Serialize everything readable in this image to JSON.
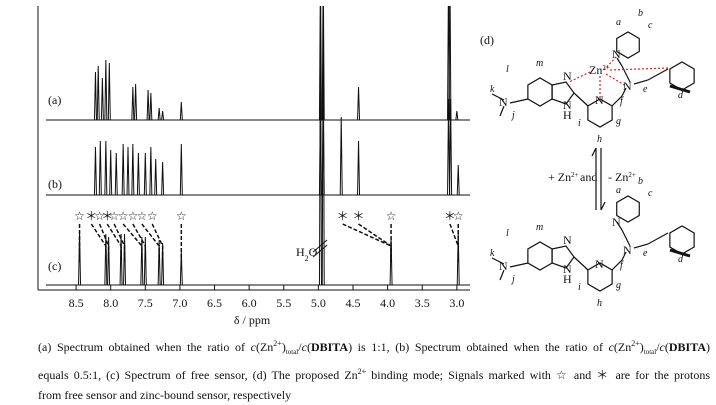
{
  "spectra": {
    "xlabel": "δ / ppm",
    "xlim": [
      9.05,
      2.81
    ],
    "xticks": [
      8.5,
      {
        "value": 8,
        "label": "8.0"
      },
      7.5,
      {
        "value": 7,
        "label": "7.0"
      },
      6.5,
      {
        "value": 6,
        "label": "6.0"
      },
      5.5,
      {
        "value": 5,
        "label": "5.0"
      },
      4.5,
      {
        "value": 4,
        "label": "4.0"
      },
      3.5,
      {
        "value": 3,
        "label": "3.0"
      }
    ],
    "traces": [
      {
        "label": "(a)",
        "peaks": [
          [
            8.22,
            0.8
          ],
          [
            8.18,
            0.9
          ],
          [
            8.12,
            0.7
          ],
          [
            8.07,
            1.0
          ],
          [
            8.02,
            0.95
          ],
          [
            7.68,
            0.55
          ],
          [
            7.64,
            0.6
          ],
          [
            7.46,
            0.5
          ],
          [
            7.42,
            0.45
          ],
          [
            7.3,
            0.2
          ],
          [
            7.25,
            0.15
          ],
          [
            6.98,
            0.3
          ],
          [
            4.97,
            2.5
          ],
          [
            4.93,
            2.5
          ],
          [
            4.42,
            0.55
          ],
          [
            3.12,
            2.5
          ],
          [
            3.1,
            2.5
          ],
          [
            3.0,
            0.15
          ]
        ]
      },
      {
        "label": "(b)",
        "peaks": [
          [
            8.22,
            0.8
          ],
          [
            8.15,
            0.9
          ],
          [
            8.07,
            0.9
          ],
          [
            8.0,
            0.75
          ],
          [
            7.92,
            0.7
          ],
          [
            7.82,
            0.85
          ],
          [
            7.75,
            0.8
          ],
          [
            7.68,
            0.85
          ],
          [
            7.6,
            0.7
          ],
          [
            7.5,
            0.7
          ],
          [
            7.42,
            0.8
          ],
          [
            7.35,
            0.6
          ],
          [
            7.25,
            0.55
          ],
          [
            6.98,
            0.85
          ],
          [
            4.97,
            1.5
          ],
          [
            4.93,
            1.5
          ],
          [
            4.67,
            1.3
          ],
          [
            4.42,
            0.9
          ],
          [
            3.12,
            1.6
          ],
          [
            3.09,
            1.6
          ],
          [
            2.98,
            0.5
          ]
        ]
      },
      {
        "label": "(c)",
        "peaks": [
          [
            8.45,
            0.9
          ],
          [
            8.07,
            0.85
          ],
          [
            8.03,
            0.8
          ],
          [
            7.85,
            0.85
          ],
          [
            7.8,
            0.85
          ],
          [
            7.55,
            0.8
          ],
          [
            7.5,
            0.8
          ],
          [
            7.3,
            0.75
          ],
          [
            7.25,
            0.7
          ],
          [
            6.98,
            0.55
          ],
          [
            4.97,
            4.5
          ],
          [
            4.93,
            4.5
          ],
          [
            3.95,
            0.8
          ],
          [
            2.98,
            0.9
          ]
        ]
      }
    ],
    "water_label": [
      "H",
      "2",
      "O"
    ],
    "markers": [
      {
        "symbol": "☆",
        "ppm": 8.45,
        "target": 8.45
      },
      {
        "symbol": "＊",
        "ppm": 8.28,
        "target": 8.07
      },
      {
        "symbol": "☆",
        "ppm": 8.16,
        "target": 8.03
      },
      {
        "symbol": "＊",
        "ppm": 8.05,
        "target": 7.85
      },
      {
        "symbol": "☆",
        "ppm": 7.95,
        "target": 7.8
      },
      {
        "symbol": "☆",
        "ppm": 7.82,
        "target": 7.55
      },
      {
        "symbol": "☆",
        "ppm": 7.68,
        "target": 7.5
      },
      {
        "symbol": "☆",
        "ppm": 7.55,
        "target": 7.3
      },
      {
        "symbol": "☆",
        "ppm": 7.4,
        "target": 7.25
      },
      {
        "symbol": "☆",
        "ppm": 6.98,
        "target": 6.98
      },
      {
        "symbol": "＊",
        "ppm": 4.65,
        "target": 3.95
      },
      {
        "symbol": "＊",
        "ppm": 4.42,
        "target": 3.95
      },
      {
        "symbol": "☆",
        "ppm": 3.95,
        "target": 3.95
      },
      {
        "symbol": "＊",
        "ppm": 3.1,
        "target": 2.98
      },
      {
        "symbol": "☆",
        "ppm": 2.98,
        "target": 2.98
      }
    ]
  },
  "structure": {
    "panel_label": "(d)",
    "top_labels": [
      "a",
      "b",
      "c",
      "N",
      "Zn",
      "2+",
      "N",
      "N",
      "d",
      "e",
      "f",
      "g",
      "h",
      "i",
      "j",
      "k",
      "l",
      "m",
      "N",
      "N",
      "H",
      "N"
    ],
    "bottom_labels": [
      "a",
      "b",
      "c",
      "N",
      "N",
      "N",
      "d",
      "e",
      "f",
      "g",
      "h",
      "i",
      "j",
      "k",
      "l",
      "m",
      "N",
      "N",
      "H",
      "N"
    ],
    "arrow_text": [
      "+ Zn",
      "2+",
      "and",
      "- Zn",
      "2+"
    ]
  },
  "caption": {
    "line1": [
      "(a) Spectrum obtained when the ratio of ",
      "c",
      "(Zn",
      "2+",
      ")",
      "total",
      "/",
      "c",
      "(",
      "DBITA",
      ") is 1:1, (b) Spectrum obtained when the ratio of ",
      "c",
      "(Zn",
      "2+",
      ")",
      "total",
      "/",
      "c",
      "(",
      "DBITA",
      ")"
    ],
    "line2": [
      "equals 0.5:1, (c) Spectrum of free sensor, (d) The proposed Zn",
      "2+",
      " binding mode; Signals marked with ☆ and ＊ are for the protons"
    ],
    "line3": [
      "from free sensor and zinc-bound sensor, respectively"
    ]
  }
}
